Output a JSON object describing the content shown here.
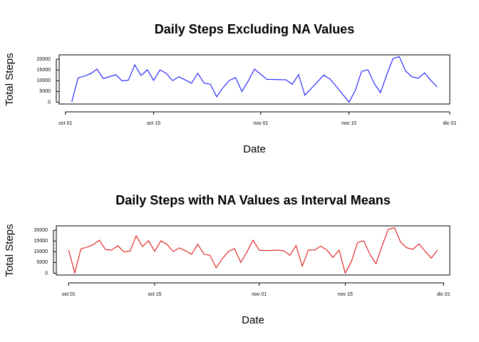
{
  "chart_data": [
    {
      "type": "line",
      "title": "Daily Steps Excluding NA Values",
      "x_label": "Date",
      "y_label": "Total Steps",
      "x": [
        "10-02",
        "10-03",
        "10-04",
        "10-05",
        "10-06",
        "10-07",
        "10-09",
        "10-10",
        "10-11",
        "10-12",
        "10-13",
        "10-14",
        "10-15",
        "10-16",
        "10-17",
        "10-18",
        "10-19",
        "10-20",
        "10-21",
        "10-22",
        "10-23",
        "10-24",
        "10-25",
        "10-26",
        "10-27",
        "10-28",
        "10-29",
        "10-30",
        "10-31",
        "11-02",
        "11-03",
        "11-05",
        "11-06",
        "11-07",
        "11-08",
        "11-11",
        "11-12",
        "11-13",
        "11-15",
        "11-16",
        "11-17",
        "11-18",
        "11-19",
        "11-20",
        "11-21",
        "11-22",
        "11-23",
        "11-24",
        "11-25",
        "11-26",
        "11-27",
        "11-28",
        "11-29"
      ],
      "series": [
        {
          "name": "Total Steps",
          "color": "#0000ff",
          "values": [
            126,
            11352,
            12116,
            13294,
            15420,
            11015,
            12811,
            9900,
            10304,
            17382,
            12426,
            15098,
            10139,
            15084,
            13452,
            10056,
            11829,
            10395,
            8821,
            13460,
            8918,
            8355,
            2492,
            6778,
            10119,
            11458,
            5018,
            9819,
            15414,
            10600,
            10571,
            10439,
            8334,
            12883,
            3219,
            12608,
            10765,
            7336,
            41,
            5441,
            14339,
            15110,
            8841,
            4472,
            12787,
            20427,
            21194,
            14478,
            11834,
            11162,
            13646,
            10183,
            7047
          ]
        }
      ],
      "xlim": [
        "09-30",
        "12-01"
      ],
      "xticks": [
        {
          "value": "10-01",
          "label": "oct 01"
        },
        {
          "value": "10-15",
          "label": "oct 15"
        },
        {
          "value": "11-01",
          "label": "nov 01"
        },
        {
          "value": "11-15",
          "label": "nov 15"
        },
        {
          "value": "12-01",
          "label": "dic 01"
        }
      ],
      "ylim": [
        -850,
        22050
      ],
      "yticks": [
        0,
        5000,
        10000,
        15000,
        20000
      ]
    },
    {
      "type": "line",
      "title": "Daily Steps with NA Values as Interval Means",
      "x_label": "Date",
      "y_label": "Total Steps",
      "x": [
        "10-01",
        "10-02",
        "10-03",
        "10-04",
        "10-05",
        "10-06",
        "10-07",
        "10-08",
        "10-09",
        "10-10",
        "10-11",
        "10-12",
        "10-13",
        "10-14",
        "10-15",
        "10-16",
        "10-17",
        "10-18",
        "10-19",
        "10-20",
        "10-21",
        "10-22",
        "10-23",
        "10-24",
        "10-25",
        "10-26",
        "10-27",
        "10-28",
        "10-29",
        "10-30",
        "10-31",
        "11-01",
        "11-02",
        "11-03",
        "11-04",
        "11-05",
        "11-06",
        "11-07",
        "11-08",
        "11-09",
        "11-10",
        "11-11",
        "11-12",
        "11-13",
        "11-14",
        "11-15",
        "11-16",
        "11-17",
        "11-18",
        "11-19",
        "11-20",
        "11-21",
        "11-22",
        "11-23",
        "11-24",
        "11-25",
        "11-26",
        "11-27",
        "11-28",
        "11-29",
        "11-30"
      ],
      "series": [
        {
          "name": "Total Steps",
          "color": "#dd0000",
          "values": [
            10766,
            126,
            11352,
            12116,
            13294,
            15420,
            11015,
            10766,
            12811,
            9900,
            10304,
            17382,
            12426,
            15098,
            10139,
            15084,
            13452,
            10056,
            11829,
            10395,
            8821,
            13460,
            8918,
            8355,
            2492,
            6778,
            10119,
            11458,
            5018,
            9819,
            15414,
            10766,
            10600,
            10571,
            10766,
            10439,
            8334,
            12883,
            3219,
            10766,
            10766,
            12608,
            10765,
            7336,
            10766,
            41,
            5441,
            14339,
            15110,
            8841,
            4472,
            12787,
            20427,
            21194,
            14478,
            11834,
            11162,
            13646,
            10183,
            7047,
            10766
          ]
        }
      ],
      "xlim": [
        "09-29",
        "12-02"
      ],
      "xticks": [
        {
          "value": "10-01",
          "label": "oct 01"
        },
        {
          "value": "10-15",
          "label": "oct 15"
        },
        {
          "value": "11-01",
          "label": "nov 01"
        },
        {
          "value": "11-15",
          "label": "nov 15"
        },
        {
          "value": "12-01",
          "label": "dic 01"
        }
      ],
      "ylim": [
        -850,
        22050
      ],
      "yticks": [
        0,
        5000,
        10000,
        15000,
        20000
      ]
    }
  ]
}
